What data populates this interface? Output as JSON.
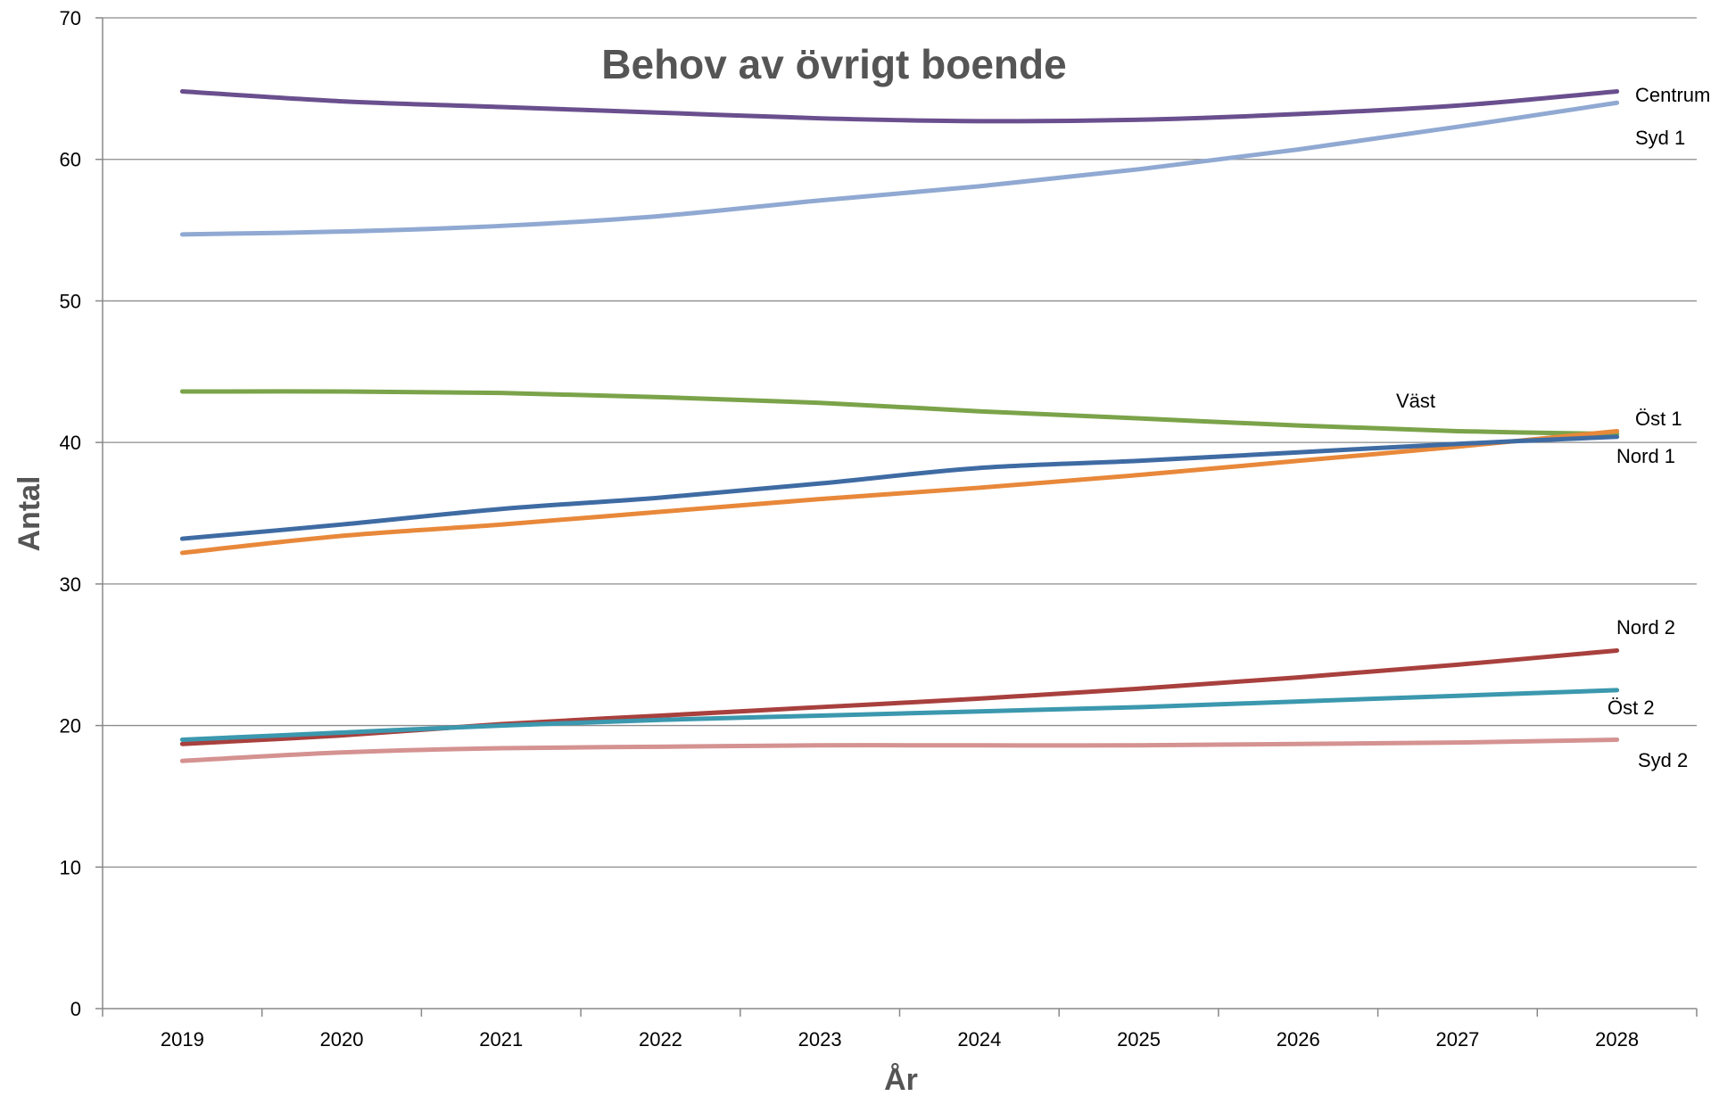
{
  "chart_data": {
    "type": "line",
    "title": "Behov av övrigt boende",
    "xlabel": "År",
    "ylabel": "Antal",
    "x": [
      "2019",
      "2020",
      "2021",
      "2022",
      "2023",
      "2024",
      "2025",
      "2026",
      "2027",
      "2028"
    ],
    "ylim": [
      0,
      70
    ],
    "yticks": [
      "0",
      "10",
      "20",
      "30",
      "40",
      "50",
      "60",
      "70"
    ],
    "grid": true,
    "legend": "labels at line ends",
    "series": [
      {
        "name": "Centrum",
        "color": "#6a4f8e",
        "values": [
          64.8,
          64.1,
          63.7,
          63.3,
          62.9,
          62.7,
          62.8,
          63.2,
          63.8,
          64.8
        ]
      },
      {
        "name": "Syd 1",
        "color": "#90a9d2",
        "values": [
          54.7,
          54.9,
          55.3,
          56.0,
          57.1,
          58.1,
          59.3,
          60.7,
          62.3,
          64.0
        ]
      },
      {
        "name": "Väst",
        "color": "#7ba34a",
        "values": [
          43.6,
          43.6,
          43.5,
          43.2,
          42.8,
          42.2,
          41.7,
          41.2,
          40.8,
          40.6
        ]
      },
      {
        "name": "Öst 1",
        "color": "#e8883a",
        "values": [
          32.2,
          33.4,
          34.2,
          35.1,
          36.0,
          36.8,
          37.7,
          38.7,
          39.7,
          40.8
        ]
      },
      {
        "name": "Nord 1",
        "color": "#3f6ba3",
        "values": [
          33.2,
          34.2,
          35.3,
          36.1,
          37.1,
          38.2,
          38.7,
          39.3,
          39.9,
          40.4
        ]
      },
      {
        "name": "Nord 2",
        "color": "#a8403d",
        "values": [
          18.7,
          19.3,
          20.1,
          20.7,
          21.3,
          21.9,
          22.6,
          23.4,
          24.3,
          25.3
        ]
      },
      {
        "name": "Öst 2",
        "color": "#3b98ae",
        "values": [
          19.0,
          19.5,
          20.0,
          20.4,
          20.7,
          21.0,
          21.3,
          21.7,
          22.1,
          22.5
        ]
      },
      {
        "name": "Syd 2",
        "color": "#d49291",
        "values": [
          17.5,
          18.1,
          18.4,
          18.5,
          18.6,
          18.6,
          18.6,
          18.7,
          18.8,
          19.0
        ]
      }
    ]
  }
}
